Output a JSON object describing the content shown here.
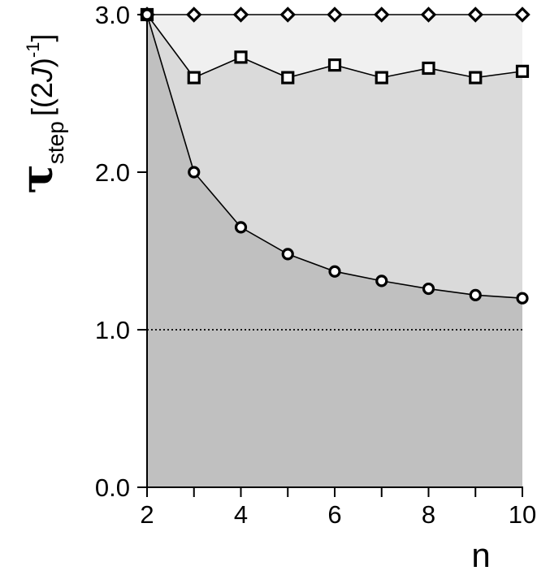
{
  "chart_data": {
    "type": "line",
    "title": "",
    "xlabel": "n",
    "ylabel": {
      "symbol": "τ",
      "subscript": "step",
      "open": "[(2",
      "italic": "J",
      "close": ")",
      "superscript": "-1",
      "end": "]"
    },
    "x": [
      2,
      3,
      4,
      5,
      6,
      7,
      8,
      9,
      10
    ],
    "xlim": [
      2,
      10
    ],
    "ylim": [
      0,
      3
    ],
    "xticks": [
      2,
      3,
      4,
      5,
      6,
      7,
      8,
      9,
      10
    ],
    "xtick_labels": [
      "2",
      "",
      "4",
      "",
      "6",
      "",
      "8",
      "",
      "10"
    ],
    "yticks": [
      0,
      1,
      2,
      3
    ],
    "ytick_labels": [
      "0.0",
      "1.0",
      "2.0",
      "3.0"
    ],
    "grid": false,
    "legend": "none",
    "series": [
      {
        "marker": "diamond",
        "values": [
          3.0,
          3.0,
          3.0,
          3.0,
          3.0,
          3.0,
          3.0,
          3.0,
          3.0
        ]
      },
      {
        "marker": "square",
        "values": [
          3.0,
          2.6,
          2.73,
          2.6,
          2.68,
          2.6,
          2.66,
          2.6,
          2.64
        ]
      },
      {
        "marker": "circle",
        "values": [
          3.0,
          2.0,
          1.65,
          1.48,
          1.37,
          1.31,
          1.26,
          1.22,
          1.2
        ]
      }
    ],
    "reference_line": {
      "y": 1.0,
      "style": "dotted"
    },
    "fills": {
      "top_region": "#f0f0f0",
      "middle_region": "#dadada",
      "bottom_region": "#c0c0c0"
    }
  }
}
